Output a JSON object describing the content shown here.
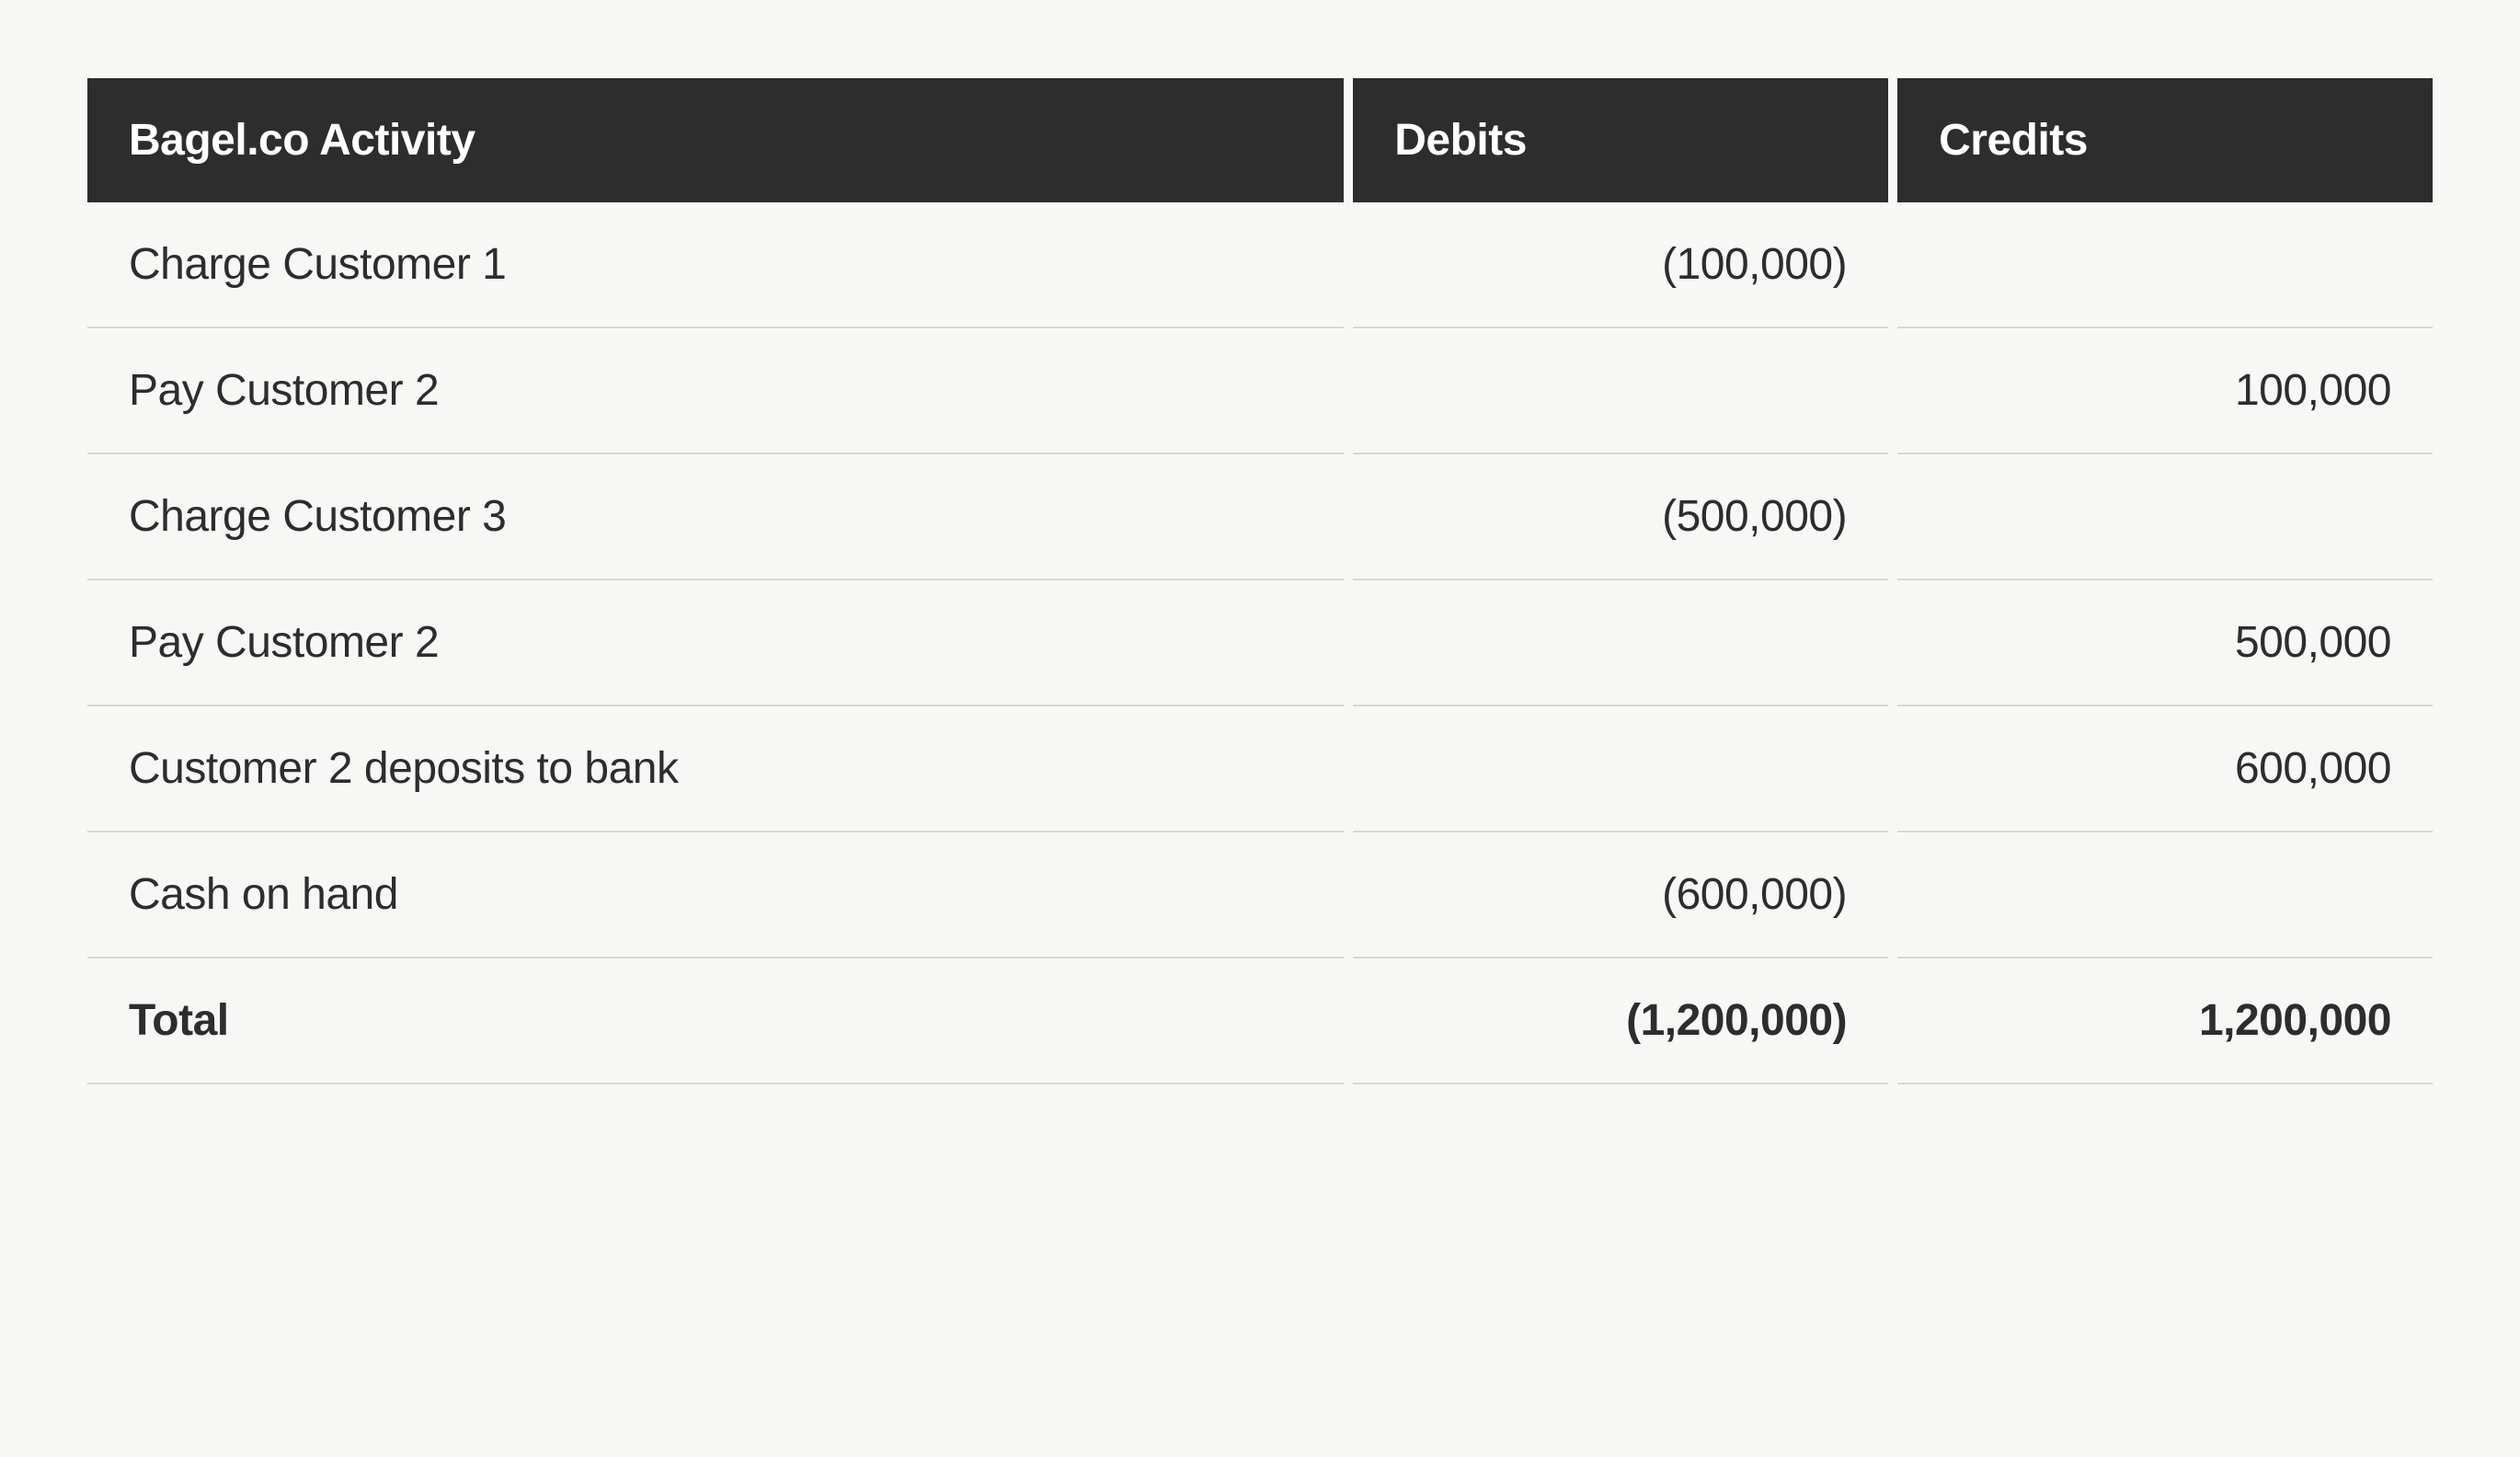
{
  "table": {
    "type": "table",
    "background_color": "#f7f7f5",
    "header_bg_color": "#2d2d2d",
    "header_text_color": "#ffffff",
    "row_border_color": "#d8d8d6",
    "text_color": "#2d2d2d",
    "header_fontsize": 48,
    "cell_fontsize": 48,
    "columns": [
      {
        "label": "Bagel.co Activity",
        "align": "left",
        "width": "54%"
      },
      {
        "label": "Debits",
        "align": "right",
        "width": "23%"
      },
      {
        "label": "Credits",
        "align": "right",
        "width": "23%"
      }
    ],
    "rows": [
      {
        "activity": "Charge Customer 1",
        "debit": "(100,000)",
        "credit": "",
        "bold": false
      },
      {
        "activity": "Pay Customer 2",
        "debit": "",
        "credit": "100,000",
        "bold": false
      },
      {
        "activity": "Charge Customer 3",
        "debit": "(500,000)",
        "credit": "",
        "bold": false
      },
      {
        "activity": "Pay Customer 2",
        "debit": "",
        "credit": "500,000",
        "bold": false
      },
      {
        "activity": "Customer 2 deposits to bank",
        "debit": "",
        "credit": "600,000",
        "bold": false
      },
      {
        "activity": "Cash on hand",
        "debit": "(600,000)",
        "credit": "",
        "bold": false
      },
      {
        "activity": "Total",
        "debit": "(1,200,000)",
        "credit": "1,200,000",
        "bold": true
      }
    ]
  }
}
